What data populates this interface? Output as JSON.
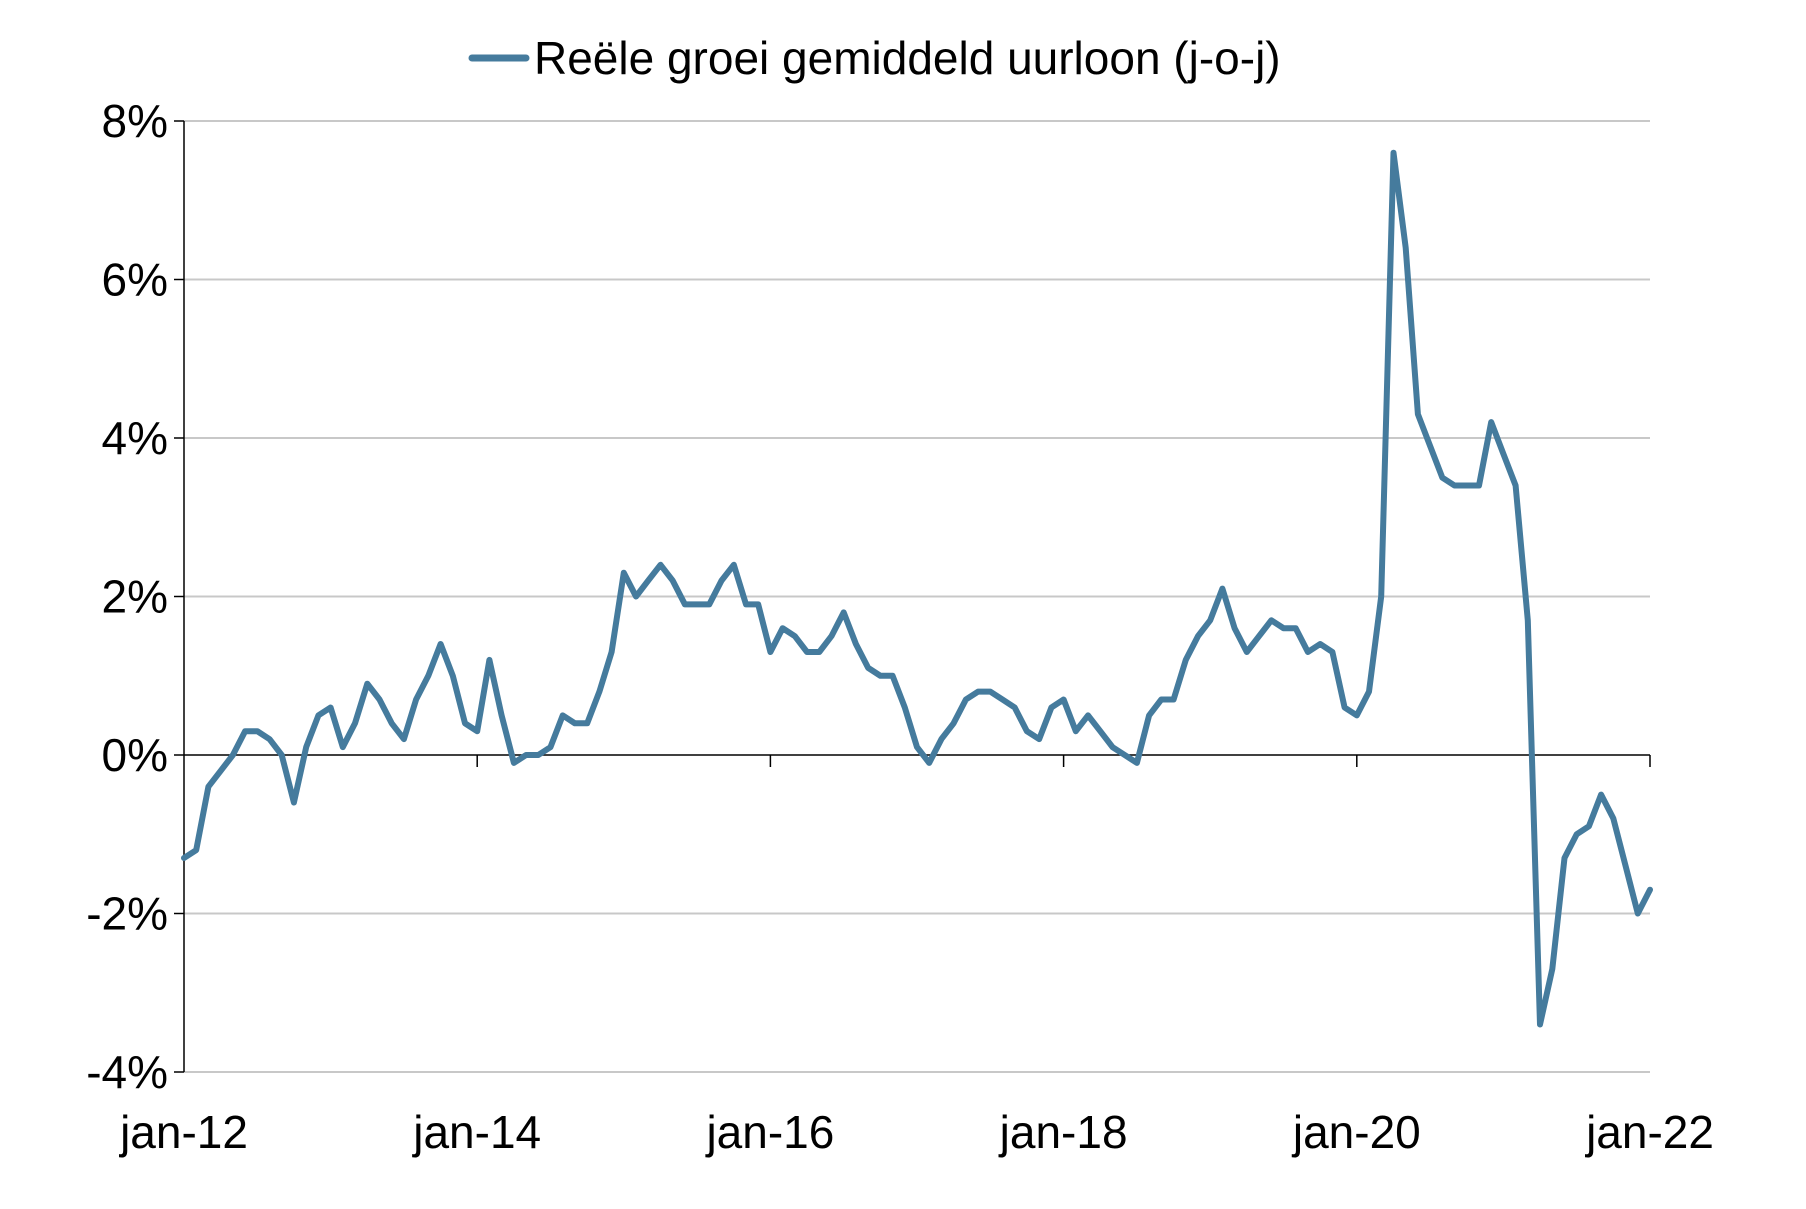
{
  "chart_data": {
    "type": "line",
    "title": "",
    "xlabel": "",
    "ylabel": "",
    "legend_position": "top",
    "grid": true,
    "colors": {
      "series": "#457b9d",
      "grid": "#c8c8c8",
      "axis": "#000000"
    },
    "ylim": [
      -4,
      8
    ],
    "y_ticks": [
      {
        "value": 8,
        "label": "8%"
      },
      {
        "value": 6,
        "label": "6%"
      },
      {
        "value": 4,
        "label": "4%"
      },
      {
        "value": 2,
        "label": "2%"
      },
      {
        "value": 0,
        "label": "0%"
      },
      {
        "value": -2,
        "label": "-2%"
      },
      {
        "value": -4,
        "label": "-4%"
      }
    ],
    "x_range": [
      "2012-01",
      "2022-01"
    ],
    "x_ticks": [
      {
        "date": "2012-01",
        "label": "jan-12"
      },
      {
        "date": "2014-01",
        "label": "jan-14"
      },
      {
        "date": "2016-01",
        "label": "jan-16"
      },
      {
        "date": "2018-01",
        "label": "jan-18"
      },
      {
        "date": "2020-01",
        "label": "jan-20"
      },
      {
        "date": "2022-01",
        "label": "jan-22"
      }
    ],
    "series": [
      {
        "name": "Reële groei gemiddeld uurloon (j-o-j)",
        "x": [
          "2012-01",
          "2012-02",
          "2012-03",
          "2012-04",
          "2012-05",
          "2012-06",
          "2012-07",
          "2012-08",
          "2012-09",
          "2012-10",
          "2012-11",
          "2012-12",
          "2013-01",
          "2013-02",
          "2013-03",
          "2013-04",
          "2013-05",
          "2013-06",
          "2013-07",
          "2013-08",
          "2013-09",
          "2013-10",
          "2013-11",
          "2013-12",
          "2014-01",
          "2014-02",
          "2014-03",
          "2014-04",
          "2014-05",
          "2014-06",
          "2014-07",
          "2014-08",
          "2014-09",
          "2014-10",
          "2014-11",
          "2014-12",
          "2015-01",
          "2015-02",
          "2015-03",
          "2015-04",
          "2015-05",
          "2015-06",
          "2015-07",
          "2015-08",
          "2015-09",
          "2015-10",
          "2015-11",
          "2015-12",
          "2016-01",
          "2016-02",
          "2016-03",
          "2016-04",
          "2016-05",
          "2016-06",
          "2016-07",
          "2016-08",
          "2016-09",
          "2016-10",
          "2016-11",
          "2016-12",
          "2017-01",
          "2017-02",
          "2017-03",
          "2017-04",
          "2017-05",
          "2017-06",
          "2017-07",
          "2017-08",
          "2017-09",
          "2017-10",
          "2017-11",
          "2017-12",
          "2018-01",
          "2018-02",
          "2018-03",
          "2018-04",
          "2018-05",
          "2018-06",
          "2018-07",
          "2018-08",
          "2018-09",
          "2018-10",
          "2018-11",
          "2018-12",
          "2019-01",
          "2019-02",
          "2019-03",
          "2019-04",
          "2019-05",
          "2019-06",
          "2019-07",
          "2019-08",
          "2019-09",
          "2019-10",
          "2019-11",
          "2019-12",
          "2020-01",
          "2020-02",
          "2020-03",
          "2020-04",
          "2020-05",
          "2020-06",
          "2020-07",
          "2020-08",
          "2020-09",
          "2020-10",
          "2020-11",
          "2020-12",
          "2021-01",
          "2021-02",
          "2021-03",
          "2021-04",
          "2021-05",
          "2021-06",
          "2021-07",
          "2021-08",
          "2021-09",
          "2021-10",
          "2021-11",
          "2021-12",
          "2022-01"
        ],
        "values": [
          -1.3,
          -1.2,
          -0.4,
          -0.2,
          0.0,
          0.3,
          0.3,
          0.2,
          0.0,
          -0.6,
          0.1,
          0.5,
          0.6,
          0.1,
          0.4,
          0.9,
          0.7,
          0.4,
          0.2,
          0.7,
          1.0,
          1.4,
          1.0,
          0.4,
          0.3,
          1.2,
          0.5,
          -0.1,
          0.0,
          0.0,
          0.1,
          0.5,
          0.4,
          0.4,
          0.8,
          1.3,
          2.3,
          2.0,
          2.2,
          2.4,
          2.2,
          1.9,
          1.9,
          1.9,
          2.2,
          2.4,
          1.9,
          1.9,
          1.3,
          1.6,
          1.5,
          1.3,
          1.3,
          1.5,
          1.8,
          1.4,
          1.1,
          1.0,
          1.0,
          0.6,
          0.1,
          -0.1,
          0.2,
          0.4,
          0.7,
          0.8,
          0.8,
          0.7,
          0.6,
          0.3,
          0.2,
          0.6,
          0.7,
          0.3,
          0.5,
          0.3,
          0.1,
          0.0,
          -0.1,
          0.5,
          0.7,
          0.7,
          1.2,
          1.5,
          1.7,
          2.1,
          1.6,
          1.3,
          1.5,
          1.7,
          1.6,
          1.6,
          1.3,
          1.4,
          1.3,
          0.6,
          0.5,
          0.8,
          2.0,
          7.6,
          6.4,
          4.3,
          3.9,
          3.5,
          3.4,
          3.4,
          3.4,
          4.2,
          3.8,
          3.4,
          1.7,
          -3.4,
          -2.7,
          -1.3,
          -1.0,
          -0.9,
          -0.5,
          -0.8,
          -1.4,
          -2.0,
          -1.7
        ]
      }
    ]
  }
}
